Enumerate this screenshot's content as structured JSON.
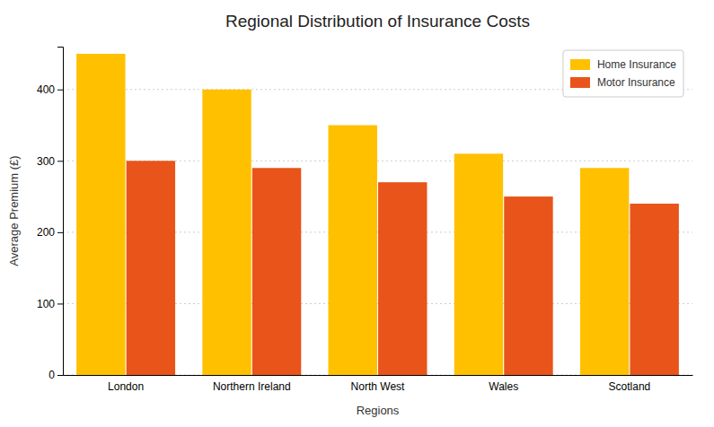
{
  "chart_data": {
    "type": "bar",
    "title": "Regional Distribution of Insurance Costs",
    "xlabel": "Regions",
    "ylabel": "Average Premium (£)",
    "categories": [
      "London",
      "Northern Ireland",
      "North West",
      "Wales",
      "Scotland"
    ],
    "series": [
      {
        "name": "Home Insurance",
        "color": "#FFC000",
        "values": [
          450,
          400,
          350,
          310,
          290
        ]
      },
      {
        "name": "Motor Insurance",
        "color": "#E8541A",
        "values": [
          300,
          290,
          270,
          250,
          240
        ]
      }
    ],
    "ylim": [
      0,
      460
    ],
    "yticks": [
      0,
      100,
      200,
      300,
      400
    ],
    "grid": true,
    "legend": "upper right"
  }
}
